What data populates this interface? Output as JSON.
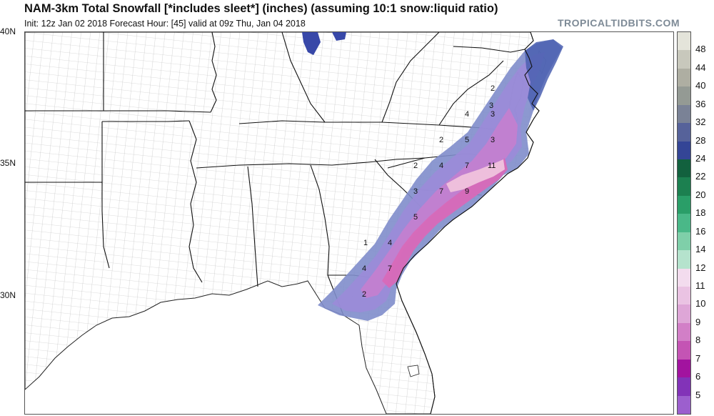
{
  "header": {
    "title": "NAM-3km Total Snowfall [*includes sleet*] (inches) (assuming 10:1 snow:liquid ratio)",
    "subtitle": "Init: 12z Jan 02 2018   Forecast Hour: [45]   valid at 09z Thu, Jan 04 2018",
    "brand": "TROPICALTIDBITS.COM"
  },
  "map": {
    "lat_labels": [
      "40N",
      "35N",
      "30N"
    ],
    "contour_labels": [
      "2",
      "4",
      "3",
      "2",
      "5",
      "3",
      "2",
      "4",
      "7",
      "11",
      "3",
      "7",
      "9",
      "5",
      "4",
      "1",
      "4",
      "7",
      "2",
      "3"
    ]
  },
  "legend": {
    "labels": [
      "48",
      "44",
      "40",
      "36",
      "32",
      "28",
      "24",
      "22",
      "20",
      "18",
      "16",
      "14",
      "12",
      "11",
      "10",
      "9",
      "8",
      "7",
      "6",
      "5"
    ],
    "colors": [
      "#e4e4da",
      "#c8c8bc",
      "#aeaea2",
      "#949a94",
      "#7a8296",
      "#56629a",
      "#344596",
      "#12613e",
      "#1c8050",
      "#2a9e68",
      "#4ab888",
      "#7fcfa9",
      "#b5e3cd",
      "#f3dcee",
      "#eac3e3",
      "#dea6d7",
      "#d27fc7",
      "#c454b4",
      "#a2139f",
      "#8233b8",
      "#9c5fce"
    ]
  }
}
